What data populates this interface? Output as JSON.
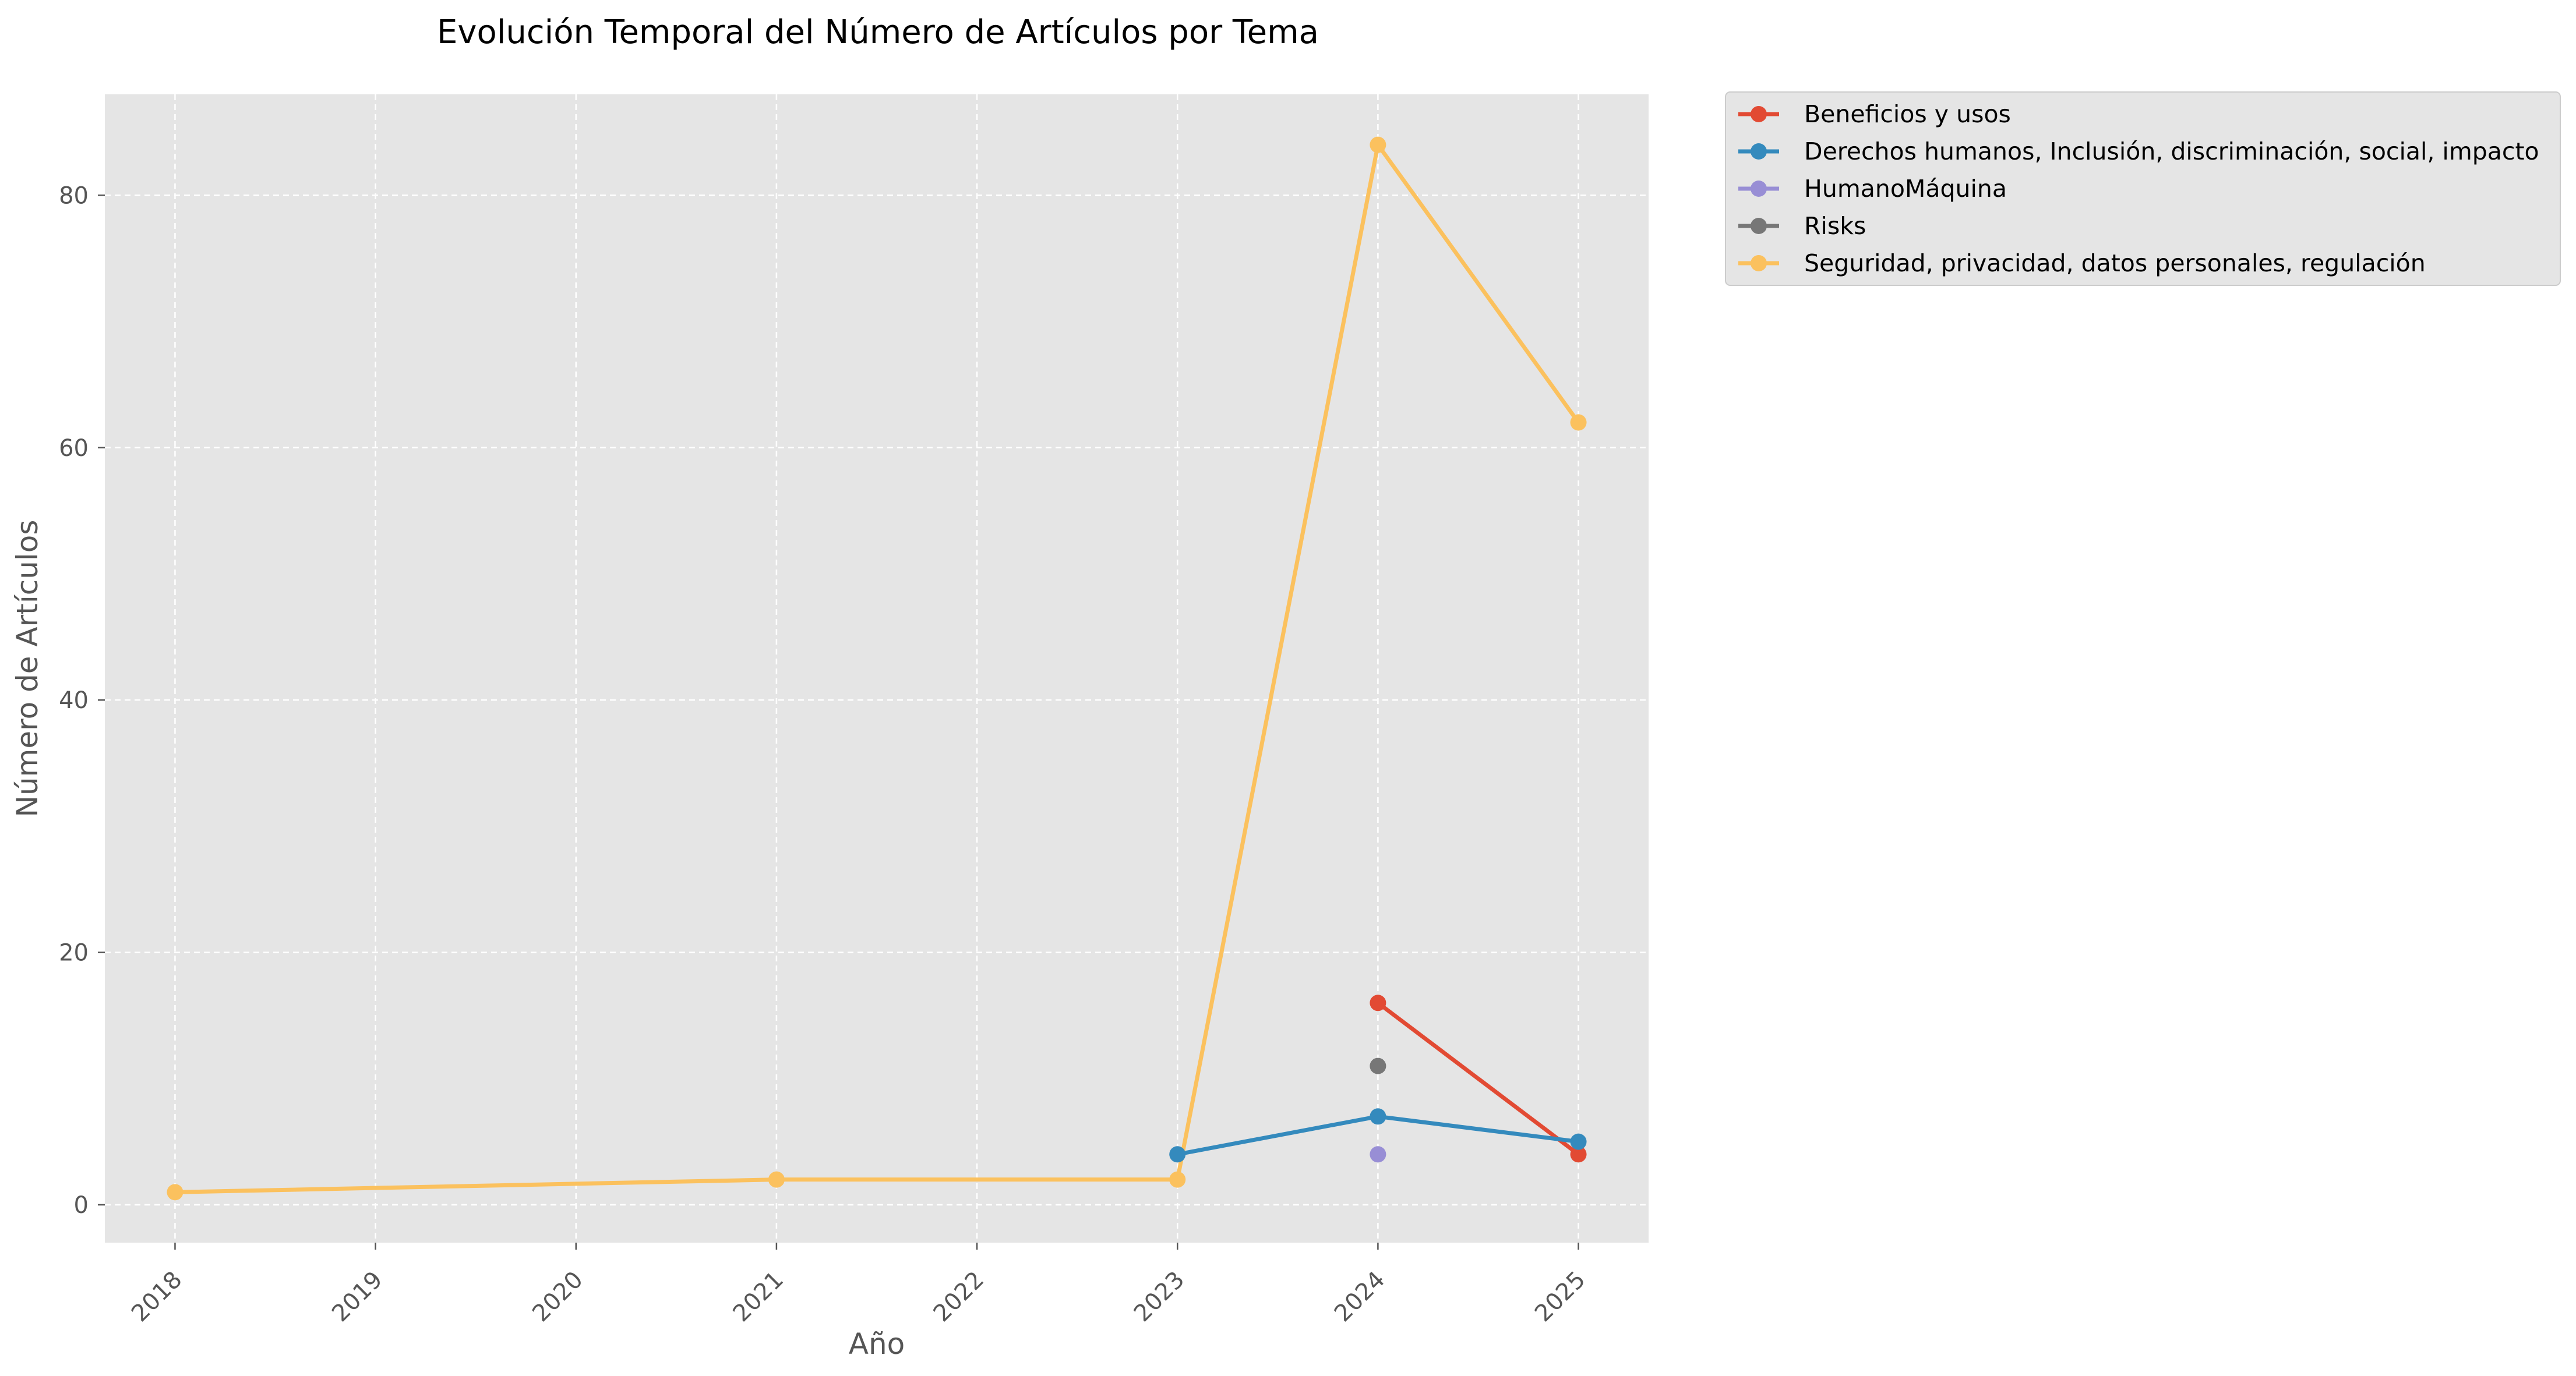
{
  "chart_data": {
    "type": "line",
    "title": "Evolución Temporal del Número de Artículos por Tema",
    "xlabel": "Año",
    "ylabel": "Número de Artículos",
    "x_ticks": [
      "2018",
      "2019",
      "2020",
      "2021",
      "2022",
      "2023",
      "2024",
      "2025"
    ],
    "y_ticks": [
      "0",
      "20",
      "40",
      "60",
      "80"
    ],
    "xlim": [
      2017.65,
      2025.35
    ],
    "ylim": [
      -3,
      88
    ],
    "grid": true,
    "legend_position": "outside-right-top",
    "series": [
      {
        "name": "Beneficios y usos",
        "color": "#E24A33",
        "points": [
          [
            2024,
            16
          ],
          [
            2025,
            4
          ]
        ]
      },
      {
        "name": "Derechos humanos, Inclusión, discriminación, social, impacto",
        "color": "#348ABD",
        "points": [
          [
            2023,
            4
          ],
          [
            2024,
            7
          ],
          [
            2025,
            5
          ]
        ]
      },
      {
        "name": "HumanoMáquina",
        "color": "#988ED5",
        "points": [
          [
            2024,
            4
          ]
        ]
      },
      {
        "name": "Risks",
        "color": "#777777",
        "points": [
          [
            2024,
            11
          ]
        ]
      },
      {
        "name": "Seguridad, privacidad, datos personales, regulación",
        "color": "#FBC15E",
        "points": [
          [
            2018,
            1
          ],
          [
            2021,
            2
          ],
          [
            2023,
            2
          ],
          [
            2024,
            84
          ],
          [
            2025,
            62
          ]
        ]
      }
    ]
  }
}
